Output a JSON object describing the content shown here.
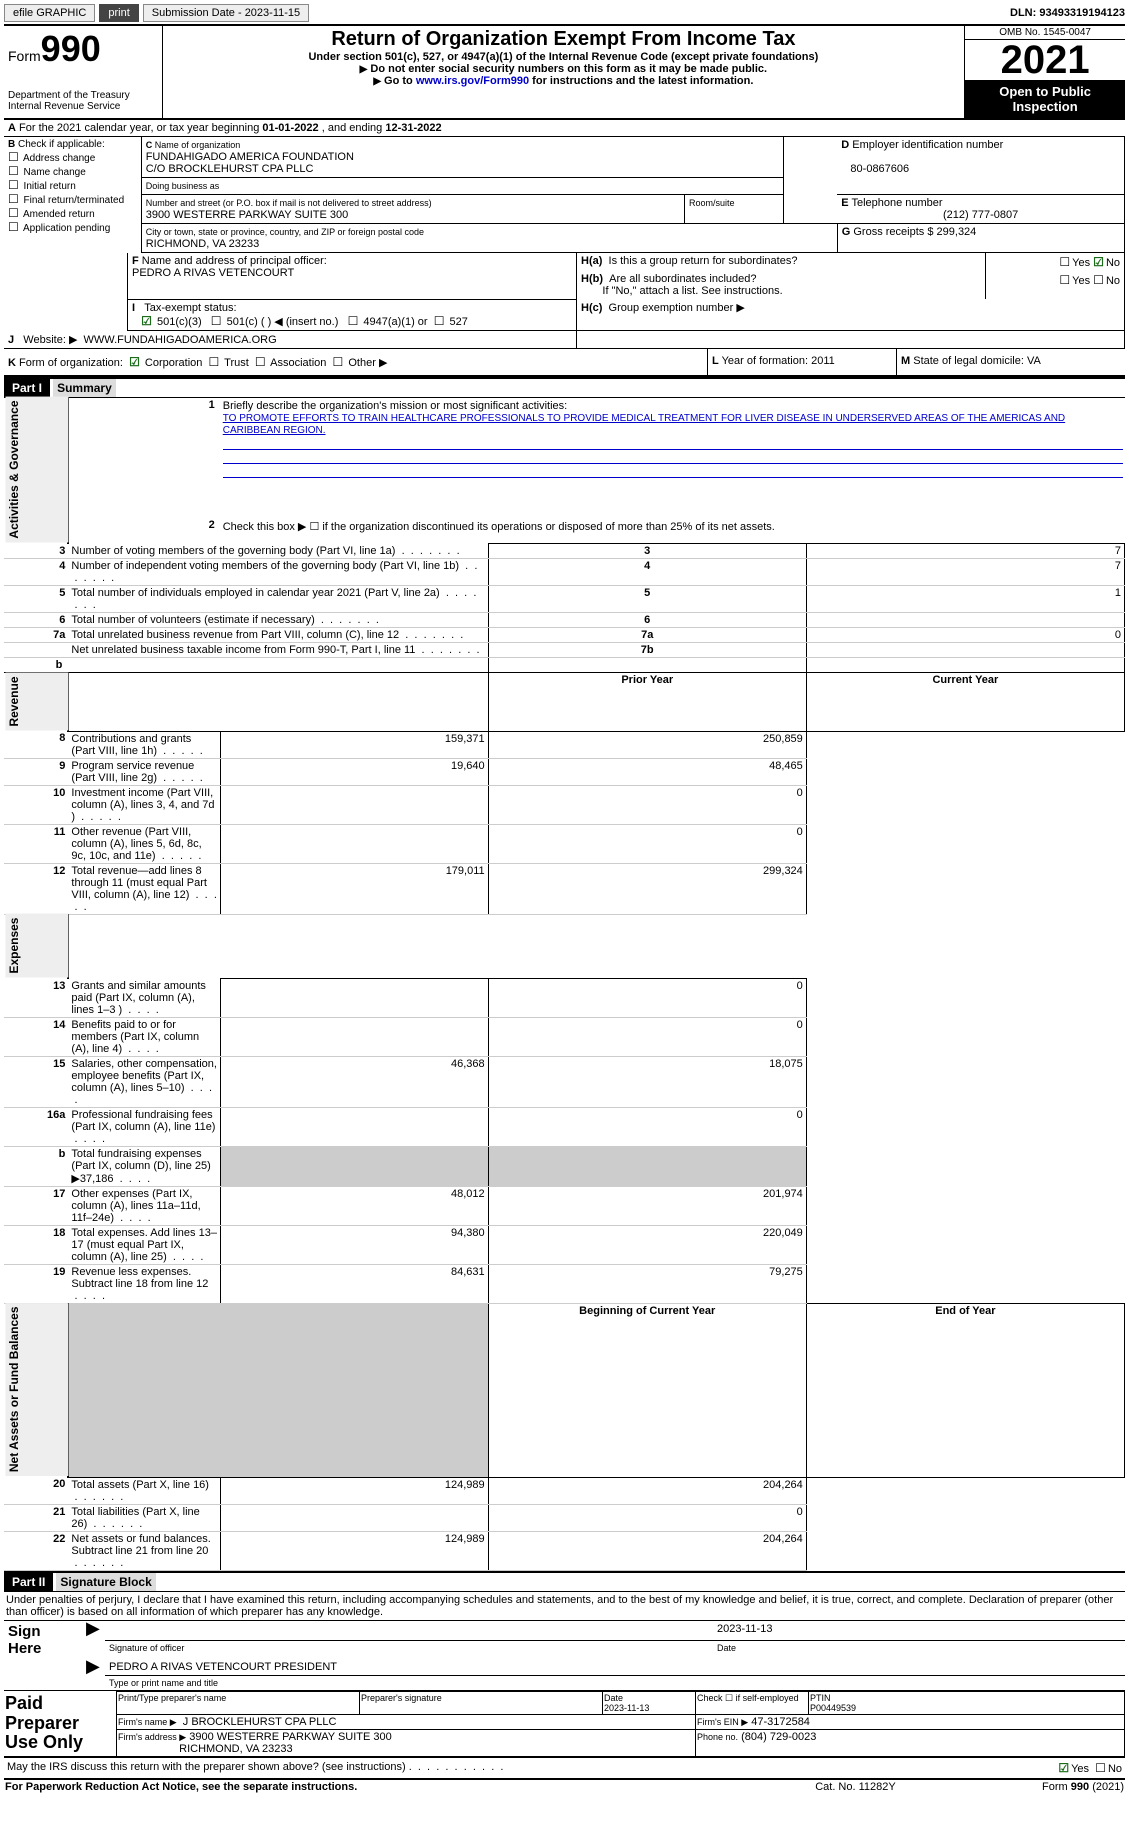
{
  "topbar": {
    "efile": "efile GRAPHIC",
    "print": "print",
    "sub_label": "Submission Date - 2023-11-15",
    "dln": "DLN: 93493319194123"
  },
  "header": {
    "form_label": "Form",
    "form_no": "990",
    "dept": "Department of the Treasury",
    "irs": "Internal Revenue Service",
    "title": "Return of Organization Exempt From Income Tax",
    "sub1": "Under section 501(c), 527, or 4947(a)(1) of the Internal Revenue Code (except private foundations)",
    "sub2": "Do not enter social security numbers on this form as it may be made public.",
    "sub3_a": "Go to ",
    "sub3_link": "www.irs.gov/Form990",
    "sub3_b": " for instructions and the latest information.",
    "omb": "OMB No. 1545-0047",
    "year": "2021",
    "open": "Open to Public Inspection"
  },
  "line_a": {
    "text_a": "For the 2021 calendar year, or tax year beginning ",
    "beg": "01-01-2022",
    "text_b": ", and ending ",
    "end": "12-31-2022"
  },
  "box_b": {
    "label": "Check if applicable:",
    "opts": [
      "Address change",
      "Name change",
      "Initial return",
      "Final return/terminated",
      "Amended return",
      "Application pending"
    ]
  },
  "box_c": {
    "label": "Name of organization",
    "name1": "FUNDAHIGADO AMERICA FOUNDATION",
    "name2": "C/O BROCKLEHURST CPA PLLC",
    "dba": "Doing business as",
    "addr_label": "Number and street (or P.O. box if mail is not delivered to street address)",
    "room": "Room/suite",
    "addr": "3900 WESTERRE PARKWAY SUITE 300",
    "city_label": "City or town, state or province, country, and ZIP or foreign postal code",
    "city": "RICHMOND, VA  23233"
  },
  "box_d": {
    "label": "Employer identification number",
    "val": "80-0867606"
  },
  "box_e": {
    "label": "Telephone number",
    "val": "(212) 777-0807"
  },
  "box_g": {
    "label": "Gross receipts $",
    "val": "299,324"
  },
  "box_f": {
    "label": "Name and address of principal officer:",
    "name": "PEDRO A RIVAS VETENCOURT"
  },
  "box_h": {
    "a": "Is this a group return for subordinates?",
    "b": "Are all subordinates included?",
    "note": "If \"No,\" attach a list. See instructions.",
    "c": "Group exemption number "
  },
  "box_i": {
    "label": "Tax-exempt status:",
    "opts": [
      "501(c)(3)",
      "501(c) (  ) ◀ (insert no.)",
      "4947(a)(1) or",
      "527"
    ]
  },
  "box_j": {
    "label": "Website: ",
    "val": "WWW.FUNDAHIGADOAMERICA.ORG"
  },
  "box_k": {
    "label": "Form of organization:",
    "opts": [
      "Corporation",
      "Trust",
      "Association",
      "Other "
    ]
  },
  "box_l": {
    "label": "Year of formation: ",
    "val": "2011"
  },
  "box_m": {
    "label": "State of legal domicile: ",
    "val": "VA"
  },
  "part1": {
    "hdr": "Part I",
    "title": "Summary",
    "side_ag": "Activities & Governance",
    "side_rev": "Revenue",
    "side_exp": "Expenses",
    "side_na": "Net Assets or Fund Balances",
    "q1": "Briefly describe the organization's mission or most significant activities:",
    "mission": "TO PROMOTE EFFORTS TO TRAIN HEALTHCARE PROFESSIONALS TO PROVIDE MEDICAL TREATMENT FOR LIVER DISEASE IN UNDERSERVED AREAS OF THE AMERICAS AND CARIBBEAN REGION.",
    "q2": "Check this box ▶ ☐ if the organization discontinued its operations or disposed of more than 25% of its net assets.",
    "lines_ag": [
      {
        "n": "3",
        "t": "Number of voting members of the governing body (Part VI, line 1a)",
        "box": "3",
        "v": "7"
      },
      {
        "n": "4",
        "t": "Number of independent voting members of the governing body (Part VI, line 1b)",
        "box": "4",
        "v": "7"
      },
      {
        "n": "5",
        "t": "Total number of individuals employed in calendar year 2021 (Part V, line 2a)",
        "box": "5",
        "v": "1"
      },
      {
        "n": "6",
        "t": "Total number of volunteers (estimate if necessary)",
        "box": "6",
        "v": ""
      },
      {
        "n": "7a",
        "t": "Total unrelated business revenue from Part VIII, column (C), line 12",
        "box": "7a",
        "v": "0"
      },
      {
        "n": "",
        "t": "Net unrelated business taxable income from Form 990-T, Part I, line 11",
        "box": "7b",
        "v": ""
      }
    ],
    "col_py": "Prior Year",
    "col_cy": "Current Year",
    "lines_rev": [
      {
        "n": "8",
        "t": "Contributions and grants (Part VIII, line 1h)",
        "py": "159,371",
        "cy": "250,859"
      },
      {
        "n": "9",
        "t": "Program service revenue (Part VIII, line 2g)",
        "py": "19,640",
        "cy": "48,465"
      },
      {
        "n": "10",
        "t": "Investment income (Part VIII, column (A), lines 3, 4, and 7d )",
        "py": "",
        "cy": "0"
      },
      {
        "n": "11",
        "t": "Other revenue (Part VIII, column (A), lines 5, 6d, 8c, 9c, 10c, and 11e)",
        "py": "",
        "cy": "0"
      },
      {
        "n": "12",
        "t": "Total revenue—add lines 8 through 11 (must equal Part VIII, column (A), line 12)",
        "py": "179,011",
        "cy": "299,324"
      }
    ],
    "lines_exp": [
      {
        "n": "13",
        "t": "Grants and similar amounts paid (Part IX, column (A), lines 1–3 )",
        "py": "",
        "cy": "0"
      },
      {
        "n": "14",
        "t": "Benefits paid to or for members (Part IX, column (A), line 4)",
        "py": "",
        "cy": "0"
      },
      {
        "n": "15",
        "t": "Salaries, other compensation, employee benefits (Part IX, column (A), lines 5–10)",
        "py": "46,368",
        "cy": "18,075"
      },
      {
        "n": "16a",
        "t": "Professional fundraising fees (Part IX, column (A), line 11e)",
        "py": "",
        "cy": "0"
      },
      {
        "n": "b",
        "t": "Total fundraising expenses (Part IX, column (D), line 25) ▶37,186",
        "py": "SHADE",
        "cy": "SHADE"
      },
      {
        "n": "17",
        "t": "Other expenses (Part IX, column (A), lines 11a–11d, 11f–24e)",
        "py": "48,012",
        "cy": "201,974"
      },
      {
        "n": "18",
        "t": "Total expenses. Add lines 13–17 (must equal Part IX, column (A), line 25)",
        "py": "94,380",
        "cy": "220,049"
      },
      {
        "n": "19",
        "t": "Revenue less expenses. Subtract line 18 from line 12",
        "py": "84,631",
        "cy": "79,275"
      }
    ],
    "col_boy": "Beginning of Current Year",
    "col_eoy": "End of Year",
    "lines_na": [
      {
        "n": "20",
        "t": "Total assets (Part X, line 16)",
        "py": "124,989",
        "cy": "204,264"
      },
      {
        "n": "21",
        "t": "Total liabilities (Part X, line 26)",
        "py": "",
        "cy": "0"
      },
      {
        "n": "22",
        "t": "Net assets or fund balances. Subtract line 21 from line 20",
        "py": "124,989",
        "cy": "204,264"
      }
    ]
  },
  "part2": {
    "hdr": "Part II",
    "title": "Signature Block",
    "decl": "Under penalties of perjury, I declare that I have examined this return, including accompanying schedules and statements, and to the best of my knowledge and belief, it is true, correct, and complete. Declaration of preparer (other than officer) is based on all information of which preparer has any knowledge.",
    "sign_here": "Sign Here",
    "sig_date": "2023-11-13",
    "sig_of": "Signature of officer",
    "date_lbl": "Date",
    "officer": "PEDRO A RIVAS VETENCOURT  PRESIDENT",
    "type_name": "Type or print name and title",
    "paid": "Paid Preparer Use Only",
    "prep_name_lbl": "Print/Type preparer's name",
    "prep_sig_lbl": "Preparer's signature",
    "prep_date": "2023-11-13",
    "self_emp": "Check ☐ if self-employed",
    "ptin_lbl": "PTIN",
    "ptin": "P00449539",
    "firm_name_lbl": "Firm's name   ▶",
    "firm_name": "J BROCKLEHURST CPA PLLC",
    "firm_ein_lbl": "Firm's EIN ▶",
    "firm_ein": "47-3172584",
    "firm_addr_lbl": "Firm's address ▶",
    "firm_addr1": "3900 WESTERRE PARKWAY SUITE 300",
    "firm_addr2": "RICHMOND, VA  23233",
    "phone_lbl": "Phone no.",
    "phone": "(804) 729-0023",
    "discuss": "May the IRS discuss this return with the preparer shown above? (see instructions)",
    "yes": "Yes",
    "no": "No"
  },
  "footer": {
    "pra": "For Paperwork Reduction Act Notice, see the separate instructions.",
    "cat": "Cat. No. 11282Y",
    "form": "Form ",
    "form_no": "990",
    "yr": " (2021)"
  }
}
